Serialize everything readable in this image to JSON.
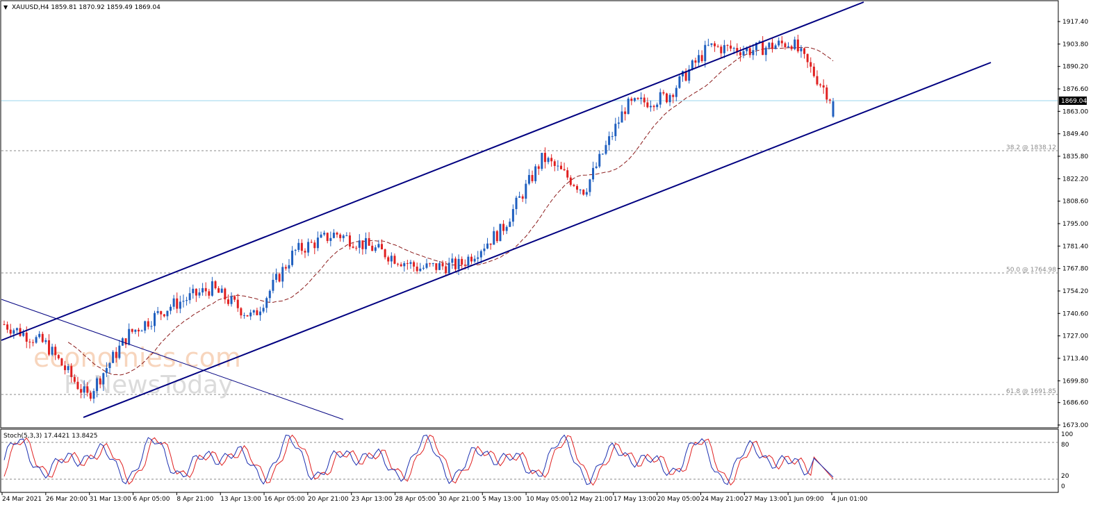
{
  "chart": {
    "header": "XAUUSD,H4  1859.81 1870.92 1859.49 1869.04",
    "current_price_label": "1869.04",
    "fib_labels": [
      "38.2 @ 1838.12",
      "50.0 @ 1764.98",
      "61.8 @ 1691.85"
    ],
    "watermark_line1": "economies.com",
    "watermark_line2": "FxNewsToday",
    "stoch_header": "Stoch(5,3,3) 17.4421 13.8425",
    "price_ticks": [
      "1917.40",
      "1903.80",
      "1890.20",
      "1876.60",
      "1863.00",
      "1849.40",
      "1835.80",
      "1822.20",
      "1808.60",
      "1795.00",
      "1781.40",
      "1767.80",
      "1754.20",
      "1740.60",
      "1727.00",
      "1713.40",
      "1699.80",
      "1686.60",
      "1673.00"
    ],
    "stoch_ticks": [
      "100",
      "80",
      "20",
      "0"
    ],
    "time_ticks": [
      "24 Mar 2021",
      "26 Mar 20:00",
      "31 Mar 13:00",
      "6 Apr 05:00",
      "8 Apr 21:00",
      "13 Apr 13:00",
      "16 Apr 05:00",
      "20 Apr 21:00",
      "23 Apr 13:00",
      "28 Apr 05:00",
      "30 Apr 21:00",
      "5 May 13:00",
      "10 May 05:00",
      "12 May 21:00",
      "17 May 13:00",
      "20 May 05:00",
      "24 May 21:00",
      "27 May 13:00",
      "1 Jun 09:00",
      "4 Jun 01:00"
    ],
    "colors": {
      "up": "#1f5fbf",
      "down": "#e02020",
      "channel": "#000080",
      "ma": "#8b1a1a",
      "stoch_main": "#1b2fb0",
      "stoch_signal": "#e02020",
      "price_line": "#9ad6ee"
    }
  },
  "chart_data": {
    "type": "candlestick",
    "symbol": "XAUUSD",
    "timeframe": "H4",
    "ohlc_last": {
      "open": 1859.81,
      "high": 1870.92,
      "low": 1859.49,
      "close": 1869.04
    },
    "ylim": [
      1673.0,
      1923.0
    ],
    "fibonacci": [
      {
        "level": "38.2",
        "price": 1838.12
      },
      {
        "level": "50.0",
        "price": 1764.98
      },
      {
        "level": "61.8",
        "price": 1691.85
      }
    ],
    "close_path": [
      {
        "date": "24 Mar 2021",
        "close": 1734
      },
      {
        "date": "26 Mar 20:00",
        "close": 1722
      },
      {
        "date": "29 Mar",
        "close": 1690
      },
      {
        "date": "31 Mar 13:00",
        "close": 1728
      },
      {
        "date": "6 Apr 05:00",
        "close": 1745
      },
      {
        "date": "8 Apr 21:00",
        "close": 1756
      },
      {
        "date": "13 Apr 13:00",
        "close": 1738
      },
      {
        "date": "16 Apr 05:00",
        "close": 1778
      },
      {
        "date": "20 Apr 21:00",
        "close": 1789
      },
      {
        "date": "23 Apr 13:00",
        "close": 1779
      },
      {
        "date": "28 Apr 05:00",
        "close": 1768
      },
      {
        "date": "30 Apr 21:00",
        "close": 1770
      },
      {
        "date": "5 May 13:00",
        "close": 1791
      },
      {
        "date": "10 May 05:00",
        "close": 1835
      },
      {
        "date": "12 May 21:00",
        "close": 1815
      },
      {
        "date": "17 May 13:00",
        "close": 1866
      },
      {
        "date": "20 May 05:00",
        "close": 1872
      },
      {
        "date": "24 May 21:00",
        "close": 1902
      },
      {
        "date": "27 May 13:00",
        "close": 1900
      },
      {
        "date": "1 Jun 09:00",
        "close": 1905
      },
      {
        "date": "4 Jun 01:00",
        "close": 1869
      }
    ],
    "stochastic": {
      "params": "5,3,3",
      "main": 17.4421,
      "signal": 13.8425,
      "levels": [
        80,
        20
      ]
    }
  }
}
